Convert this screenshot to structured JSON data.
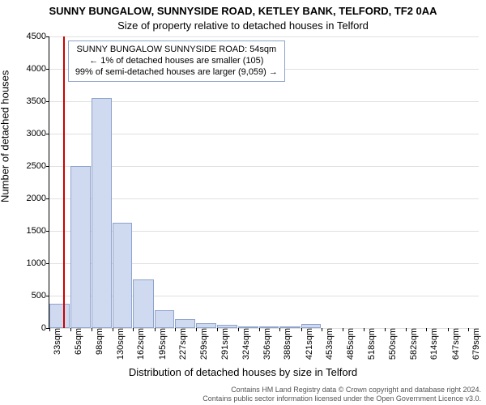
{
  "title": "SUNNY BUNGALOW, SUNNYSIDE ROAD, KETLEY BANK, TELFORD, TF2 0AA",
  "subtitle": "Size of property relative to detached houses in Telford",
  "ylabel": "Number of detached houses",
  "xlabel": "Distribution of detached houses by size in Telford",
  "chart": {
    "type": "histogram",
    "background_color": "#ffffff",
    "grid_color": "#e0e0e0",
    "axis_color": "#000000",
    "ylim": [
      0,
      4500
    ],
    "yticks": [
      0,
      500,
      1000,
      1500,
      2000,
      2500,
      3000,
      3500,
      4000,
      4500
    ],
    "x_domain_sqm": [
      33,
      695
    ],
    "xticks_sqm": [
      33,
      65,
      98,
      130,
      162,
      195,
      227,
      259,
      291,
      324,
      356,
      388,
      421,
      453,
      485,
      518,
      550,
      582,
      614,
      647,
      679
    ],
    "xtick_labels": [
      "33sqm",
      "65sqm",
      "98sqm",
      "130sqm",
      "162sqm",
      "195sqm",
      "227sqm",
      "259sqm",
      "291sqm",
      "324sqm",
      "356sqm",
      "388sqm",
      "421sqm",
      "453sqm",
      "485sqm",
      "518sqm",
      "550sqm",
      "582sqm",
      "614sqm",
      "647sqm",
      "679sqm"
    ],
    "bar_color": "#cfdaf0",
    "bar_border_color": "#8ea3cc",
    "bars": [
      {
        "x0": 33,
        "x1": 65,
        "value": 370
      },
      {
        "x0": 65,
        "x1": 98,
        "value": 2500
      },
      {
        "x0": 98,
        "x1": 130,
        "value": 3550
      },
      {
        "x0": 130,
        "x1": 162,
        "value": 1630
      },
      {
        "x0": 162,
        "x1": 195,
        "value": 750
      },
      {
        "x0": 195,
        "x1": 227,
        "value": 280
      },
      {
        "x0": 227,
        "x1": 259,
        "value": 140
      },
      {
        "x0": 259,
        "x1": 291,
        "value": 80
      },
      {
        "x0": 291,
        "x1": 324,
        "value": 45
      },
      {
        "x0": 324,
        "x1": 356,
        "value": 30
      },
      {
        "x0": 356,
        "x1": 388,
        "value": 10
      },
      {
        "x0": 388,
        "x1": 421,
        "value": 20
      },
      {
        "x0": 421,
        "x1": 453,
        "value": 60
      },
      {
        "x0": 453,
        "x1": 485,
        "value": 0
      },
      {
        "x0": 485,
        "x1": 518,
        "value": 0
      },
      {
        "x0": 518,
        "x1": 550,
        "value": 0
      },
      {
        "x0": 550,
        "x1": 582,
        "value": 0
      },
      {
        "x0": 582,
        "x1": 614,
        "value": 0
      },
      {
        "x0": 614,
        "x1": 647,
        "value": 0
      },
      {
        "x0": 647,
        "x1": 679,
        "value": 0
      }
    ],
    "reference_line": {
      "x_sqm": 54,
      "color": "#cc0000"
    },
    "legend": {
      "border_color": "#8ea3cc",
      "lines": [
        "SUNNY BUNGALOW SUNNYSIDE ROAD: 54sqm",
        "← 1% of detached houses are smaller (105)",
        "99% of semi-detached houses are larger (9,059) →"
      ]
    }
  },
  "footer": {
    "line1": "Contains HM Land Registry data © Crown copyright and database right 2024.",
    "line2": "Contains public sector information licensed under the Open Government Licence v3.0."
  }
}
